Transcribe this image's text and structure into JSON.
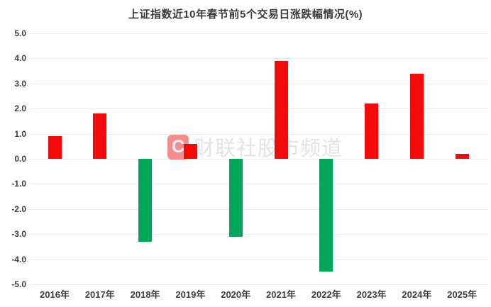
{
  "title": "上证指数近10年春节前5个交易日涨跌幅情况(%)",
  "watermark": {
    "logo_letter": "C",
    "text": "财联社股市频道"
  },
  "colors": {
    "positive_bar": "#f50a0a",
    "negative_bar": "#00a65a",
    "grid": "#eaeaea",
    "title_text": "#3b3b3b",
    "axis_text": "#3e3e3e",
    "watermark_text": "#e3e3e3",
    "watermark_logo_bg": "#ec3030"
  },
  "chart_data": {
    "type": "bar",
    "title": "上证指数近10年春节前5个交易日涨跌幅情况(%)",
    "categories": [
      "2016年",
      "2017年",
      "2018年",
      "2019年",
      "2020年",
      "2021年",
      "2022年",
      "2023年",
      "2024年",
      "2025年"
    ],
    "values": [
      0.9,
      1.8,
      -3.3,
      0.6,
      -3.1,
      3.9,
      -4.5,
      2.2,
      3.4,
      0.2
    ],
    "xlabel": "",
    "ylabel": "",
    "ylim": [
      -5.0,
      5.0
    ],
    "ytick_step": 1.0,
    "yticks": [
      "5.0",
      "4.0",
      "3.0",
      "2.0",
      "1.0",
      "0.0",
      "-1.0",
      "-2.0",
      "-3.0",
      "-4.0",
      "-5.0"
    ],
    "grid": true,
    "legend": false,
    "color_rule": "positive values red, negative values green"
  }
}
